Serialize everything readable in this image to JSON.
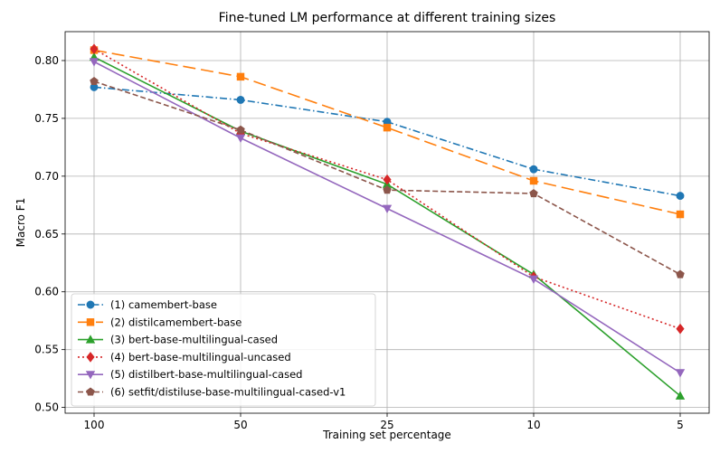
{
  "chart_data": {
    "type": "line",
    "title": "Fine-tuned LM performance at different training sizes",
    "xlabel": "Training set percentage",
    "ylabel": "Macro F1",
    "categories": [
      "100",
      "50",
      "25",
      "10",
      "5"
    ],
    "ylim": [
      0.495,
      0.825
    ],
    "yticks": [
      "0.50",
      "0.55",
      "0.60",
      "0.65",
      "0.70",
      "0.75",
      "0.80"
    ],
    "grid": true,
    "legend_position": "lower-left",
    "series": [
      {
        "name": "(1) camembert-base",
        "values": [
          0.777,
          0.766,
          0.747,
          0.706,
          0.683
        ],
        "color": "#1f77b4",
        "marker": "circle",
        "dash": "8,3,1.5,3"
      },
      {
        "name": "(2) distilcamembert-base",
        "values": [
          0.809,
          0.786,
          0.742,
          0.696,
          0.667
        ],
        "color": "#ff7f0e",
        "marker": "square",
        "dash": "14,6"
      },
      {
        "name": "(3) bert-base-multilingual-cased",
        "values": [
          0.803,
          0.739,
          0.693,
          0.615,
          0.51
        ],
        "color": "#2ca02c",
        "marker": "triangle-up",
        "dash": ""
      },
      {
        "name": "(4) bert-base-multilingual-uncased",
        "values": [
          0.81,
          0.737,
          0.697,
          0.613,
          0.568
        ],
        "color": "#d62728",
        "marker": "diamond",
        "dash": "2,3"
      },
      {
        "name": "(5) distilbert-base-multilingual-cased",
        "values": [
          0.799,
          0.733,
          0.672,
          0.611,
          0.53
        ],
        "color": "#9467bd",
        "marker": "triangle-down",
        "dash": ""
      },
      {
        "name": "(6) setfit/distiluse-base-multilingual-cased-v1",
        "values": [
          0.782,
          0.74,
          0.688,
          0.685,
          0.615
        ],
        "color": "#8c564b",
        "marker": "pentagon",
        "dash": "6,3"
      }
    ]
  }
}
